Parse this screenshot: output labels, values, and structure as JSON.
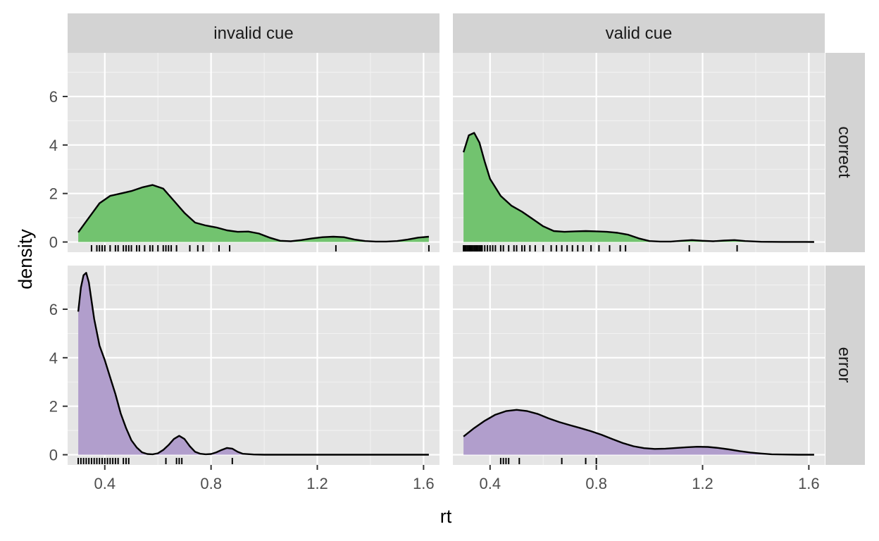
{
  "chart_data": {
    "type": "area",
    "xlabel": "rt",
    "ylabel": "density",
    "xlim": [
      0.3,
      1.62
    ],
    "ylim": [
      0,
      7.8
    ],
    "x_ticks": [
      0.4,
      0.8,
      1.2,
      1.6
    ],
    "x_tick_labels": [
      "0.4",
      "0.8",
      "1.2",
      "1.6"
    ],
    "y_ticks": [
      0,
      2,
      4,
      6
    ],
    "y_tick_labels": [
      "0",
      "2",
      "4",
      "6"
    ],
    "columns": [
      "invalid cue",
      "valid cue"
    ],
    "rows": [
      "correct",
      "error"
    ],
    "colors": {
      "correct": "#72c36f",
      "error": "#b19ecc",
      "panel_bg": "#e5e5e5",
      "strip_bg": "#d3d3d3",
      "line": "#000000"
    },
    "panels": [
      {
        "column": "invalid cue",
        "row": "correct",
        "density": [
          [
            0.3,
            0.4
          ],
          [
            0.34,
            1.0
          ],
          [
            0.38,
            1.6
          ],
          [
            0.42,
            1.9
          ],
          [
            0.46,
            2.0
          ],
          [
            0.5,
            2.1
          ],
          [
            0.54,
            2.25
          ],
          [
            0.58,
            2.35
          ],
          [
            0.62,
            2.2
          ],
          [
            0.66,
            1.7
          ],
          [
            0.7,
            1.2
          ],
          [
            0.74,
            0.8
          ],
          [
            0.78,
            0.68
          ],
          [
            0.82,
            0.6
          ],
          [
            0.86,
            0.48
          ],
          [
            0.9,
            0.42
          ],
          [
            0.94,
            0.43
          ],
          [
            0.98,
            0.35
          ],
          [
            1.02,
            0.18
          ],
          [
            1.06,
            0.05
          ],
          [
            1.1,
            0.03
          ],
          [
            1.14,
            0.08
          ],
          [
            1.18,
            0.15
          ],
          [
            1.22,
            0.2
          ],
          [
            1.26,
            0.22
          ],
          [
            1.3,
            0.2
          ],
          [
            1.34,
            0.1
          ],
          [
            1.38,
            0.04
          ],
          [
            1.42,
            0.02
          ],
          [
            1.46,
            0.02
          ],
          [
            1.5,
            0.04
          ],
          [
            1.54,
            0.1
          ],
          [
            1.58,
            0.18
          ],
          [
            1.62,
            0.22
          ]
        ],
        "rug": [
          0.35,
          0.37,
          0.38,
          0.39,
          0.4,
          0.42,
          0.44,
          0.45,
          0.47,
          0.48,
          0.49,
          0.5,
          0.52,
          0.53,
          0.55,
          0.57,
          0.58,
          0.6,
          0.62,
          0.63,
          0.64,
          0.65,
          0.67,
          0.72,
          0.75,
          0.77,
          0.83,
          0.87,
          1.27,
          1.62
        ]
      },
      {
        "column": "valid cue",
        "row": "correct",
        "density": [
          [
            0.3,
            3.7
          ],
          [
            0.32,
            4.4
          ],
          [
            0.34,
            4.5
          ],
          [
            0.36,
            4.1
          ],
          [
            0.38,
            3.3
          ],
          [
            0.4,
            2.6
          ],
          [
            0.44,
            1.9
          ],
          [
            0.48,
            1.5
          ],
          [
            0.52,
            1.25
          ],
          [
            0.56,
            0.95
          ],
          [
            0.6,
            0.65
          ],
          [
            0.64,
            0.45
          ],
          [
            0.68,
            0.42
          ],
          [
            0.72,
            0.44
          ],
          [
            0.76,
            0.45
          ],
          [
            0.8,
            0.44
          ],
          [
            0.84,
            0.42
          ],
          [
            0.88,
            0.38
          ],
          [
            0.92,
            0.3
          ],
          [
            0.96,
            0.15
          ],
          [
            1.0,
            0.04
          ],
          [
            1.04,
            0.02
          ],
          [
            1.08,
            0.02
          ],
          [
            1.12,
            0.05
          ],
          [
            1.16,
            0.08
          ],
          [
            1.2,
            0.05
          ],
          [
            1.24,
            0.03
          ],
          [
            1.28,
            0.06
          ],
          [
            1.32,
            0.08
          ],
          [
            1.36,
            0.04
          ],
          [
            1.42,
            0.01
          ],
          [
            1.5,
            0.005
          ],
          [
            1.62,
            0.0
          ]
        ],
        "rug": [
          0.3,
          0.305,
          0.31,
          0.315,
          0.32,
          0.325,
          0.33,
          0.335,
          0.34,
          0.345,
          0.35,
          0.355,
          0.36,
          0.365,
          0.37,
          0.38,
          0.39,
          0.4,
          0.41,
          0.42,
          0.44,
          0.45,
          0.47,
          0.49,
          0.5,
          0.52,
          0.53,
          0.55,
          0.57,
          0.6,
          0.63,
          0.65,
          0.67,
          0.69,
          0.71,
          0.73,
          0.75,
          0.78,
          0.81,
          0.85,
          0.89,
          0.91,
          1.15,
          1.33
        ]
      },
      {
        "column": "invalid cue",
        "row": "error",
        "density": [
          [
            0.3,
            5.9
          ],
          [
            0.31,
            6.9
          ],
          [
            0.32,
            7.4
          ],
          [
            0.33,
            7.5
          ],
          [
            0.34,
            7.1
          ],
          [
            0.36,
            5.6
          ],
          [
            0.38,
            4.5
          ],
          [
            0.4,
            3.9
          ],
          [
            0.42,
            3.2
          ],
          [
            0.44,
            2.5
          ],
          [
            0.46,
            1.7
          ],
          [
            0.48,
            1.1
          ],
          [
            0.5,
            0.6
          ],
          [
            0.52,
            0.3
          ],
          [
            0.54,
            0.1
          ],
          [
            0.56,
            0.03
          ],
          [
            0.58,
            0.02
          ],
          [
            0.6,
            0.06
          ],
          [
            0.62,
            0.2
          ],
          [
            0.64,
            0.4
          ],
          [
            0.66,
            0.65
          ],
          [
            0.68,
            0.78
          ],
          [
            0.7,
            0.65
          ],
          [
            0.72,
            0.35
          ],
          [
            0.74,
            0.12
          ],
          [
            0.76,
            0.04
          ],
          [
            0.78,
            0.02
          ],
          [
            0.8,
            0.03
          ],
          [
            0.82,
            0.1
          ],
          [
            0.84,
            0.2
          ],
          [
            0.86,
            0.28
          ],
          [
            0.88,
            0.25
          ],
          [
            0.9,
            0.12
          ],
          [
            0.92,
            0.04
          ],
          [
            0.96,
            0.01
          ],
          [
            1.0,
            0.0
          ],
          [
            1.62,
            0.0
          ]
        ],
        "rug": [
          0.3,
          0.31,
          0.32,
          0.33,
          0.34,
          0.35,
          0.36,
          0.37,
          0.38,
          0.39,
          0.4,
          0.41,
          0.42,
          0.43,
          0.44,
          0.45,
          0.47,
          0.48,
          0.49,
          0.63,
          0.67,
          0.68,
          0.69,
          0.88
        ]
      },
      {
        "column": "valid cue",
        "row": "error",
        "density": [
          [
            0.3,
            0.75
          ],
          [
            0.34,
            1.1
          ],
          [
            0.38,
            1.4
          ],
          [
            0.42,
            1.65
          ],
          [
            0.46,
            1.8
          ],
          [
            0.5,
            1.85
          ],
          [
            0.54,
            1.8
          ],
          [
            0.58,
            1.68
          ],
          [
            0.62,
            1.5
          ],
          [
            0.66,
            1.35
          ],
          [
            0.7,
            1.22
          ],
          [
            0.74,
            1.1
          ],
          [
            0.78,
            0.97
          ],
          [
            0.82,
            0.82
          ],
          [
            0.86,
            0.65
          ],
          [
            0.9,
            0.48
          ],
          [
            0.94,
            0.35
          ],
          [
            0.98,
            0.27
          ],
          [
            1.02,
            0.24
          ],
          [
            1.06,
            0.25
          ],
          [
            1.1,
            0.28
          ],
          [
            1.14,
            0.31
          ],
          [
            1.18,
            0.33
          ],
          [
            1.22,
            0.32
          ],
          [
            1.26,
            0.28
          ],
          [
            1.3,
            0.22
          ],
          [
            1.34,
            0.15
          ],
          [
            1.38,
            0.09
          ],
          [
            1.42,
            0.05
          ],
          [
            1.46,
            0.02
          ],
          [
            1.5,
            0.01
          ],
          [
            1.56,
            0.0
          ],
          [
            1.62,
            0.0
          ]
        ],
        "rug": [
          0.44,
          0.45,
          0.46,
          0.47,
          0.51,
          0.67,
          0.76,
          0.8
        ]
      }
    ]
  }
}
